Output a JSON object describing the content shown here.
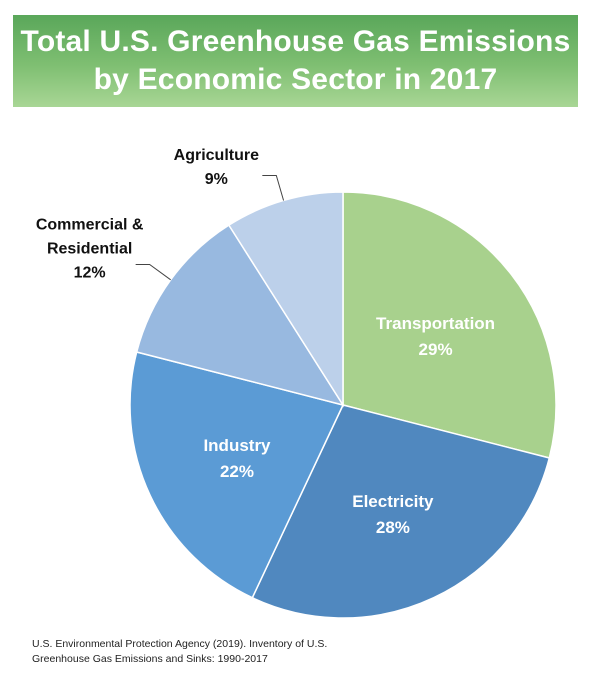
{
  "title": {
    "line1": "Total U.S. Greenhouse Gas Emissions",
    "line2": "by Economic Sector in 2017"
  },
  "chart_data": {
    "type": "pie",
    "title": "Total U.S. Greenhouse Gas Emissions by Economic Sector in 2017",
    "unit": "%",
    "slices": [
      {
        "label": "Transportation",
        "value": 29,
        "display": "29%",
        "color": "#a8d18d",
        "label_position": "inside"
      },
      {
        "label": "Electricity",
        "value": 28,
        "display": "28%",
        "color": "#5088bf",
        "label_position": "inside"
      },
      {
        "label": "Industry",
        "value": 22,
        "display": "22%",
        "color": "#5b9bd5",
        "label_position": "inside"
      },
      {
        "label": "Commercial & Residential",
        "value": 12,
        "display": "12%",
        "color": "#98b9e0",
        "label_position": "outside",
        "label_lines": [
          "Commercial &",
          "Residential"
        ]
      },
      {
        "label": "Agriculture",
        "value": 9,
        "display": "9%",
        "color": "#bcd0ea",
        "label_position": "outside",
        "label_lines": [
          "Agriculture"
        ]
      }
    ]
  },
  "source": {
    "line1": "U.S. Environmental Protection Agency (2019). Inventory of U.S.",
    "line2": "Greenhouse Gas Emissions and Sinks: 1990-2017"
  }
}
